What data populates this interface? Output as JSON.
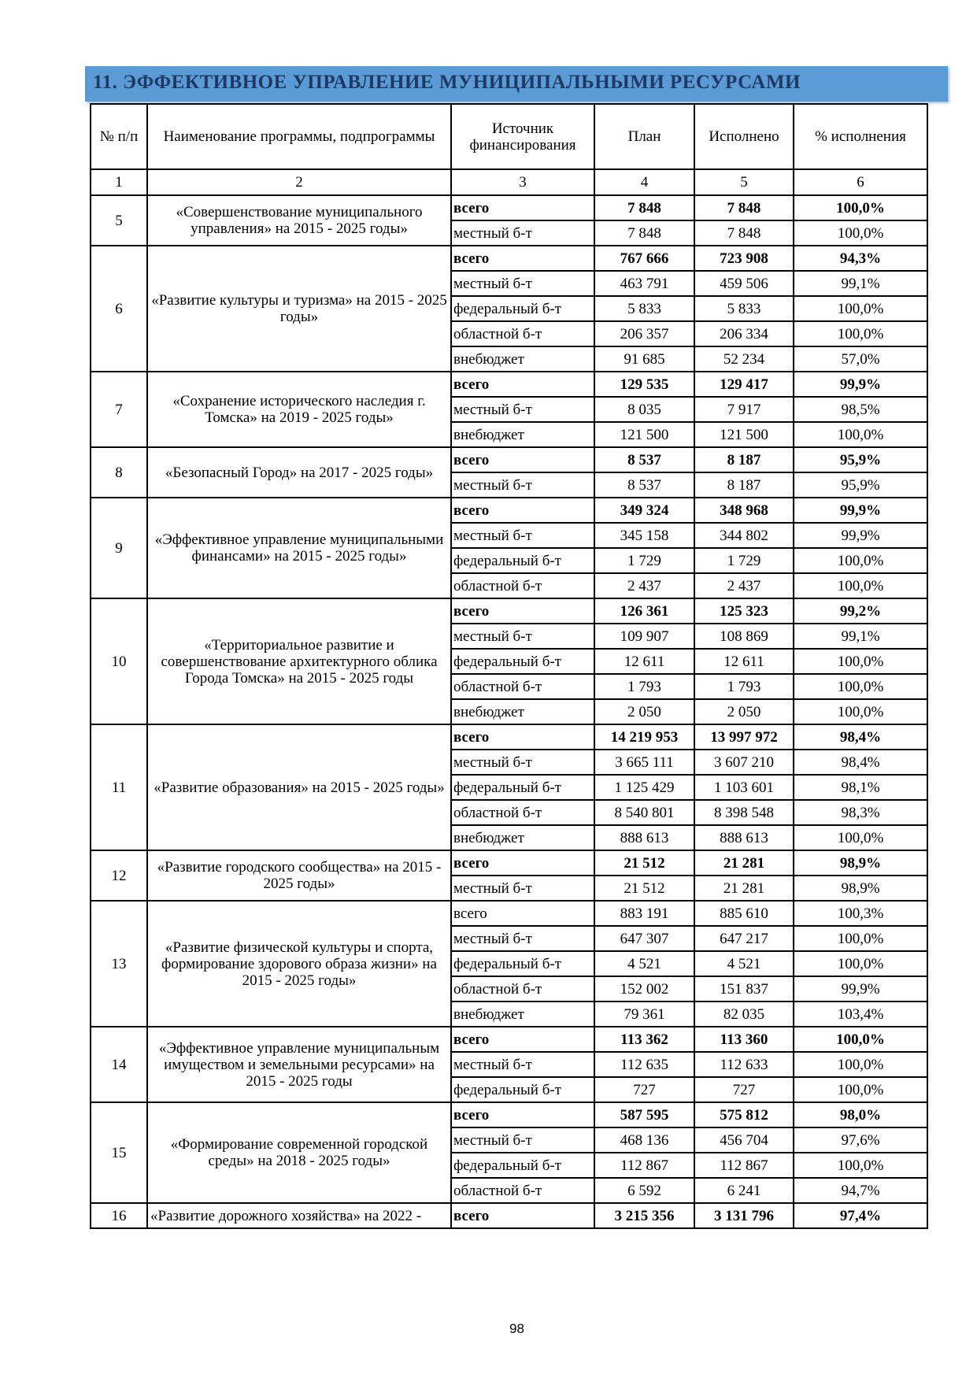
{
  "section_title": "11. ЭФФЕКТИВНОЕ УПРАВЛЕНИЕ МУНИЦИПАЛЬНЫМИ РЕСУРСАМИ",
  "columns": [
    "№ п/п",
    "Наименование программы, подпрограммы",
    "Источник финансирования",
    "План",
    "Исполнено",
    "% исполнения"
  ],
  "column_numbers": [
    "1",
    "2",
    "3",
    "4",
    "5",
    "6"
  ],
  "programs": [
    {
      "no": "5",
      "name": "«Совершенствование муниципального управления» на 2015 - 2025 годы»",
      "rows": [
        {
          "source": "всего",
          "plan": "7 848",
          "done": "7 848",
          "pct": "100,0%",
          "bold": true
        },
        {
          "source": "местный б-т",
          "plan": "7 848",
          "done": "7 848",
          "pct": "100,0%"
        }
      ]
    },
    {
      "no": "6",
      "name": "«Развитие культуры и туризма» на 2015 - 2025 годы»",
      "rows": [
        {
          "source": "всего",
          "plan": "767 666",
          "done": "723 908",
          "pct": "94,3%",
          "bold": true
        },
        {
          "source": "местный б-т",
          "plan": "463 791",
          "done": "459 506",
          "pct": "99,1%"
        },
        {
          "source": "федеральный б-т",
          "plan": "5 833",
          "done": "5 833",
          "pct": "100,0%"
        },
        {
          "source": "областной б-т",
          "plan": "206 357",
          "done": "206 334",
          "pct": "100,0%"
        },
        {
          "source": "внебюджет",
          "plan": "91 685",
          "done": "52 234",
          "pct": "57,0%"
        }
      ]
    },
    {
      "no": "7",
      "name": "«Сохранение исторического наследия г. Томска» на 2019 - 2025 годы»",
      "rows": [
        {
          "source": "всего",
          "plan": "129 535",
          "done": "129 417",
          "pct": "99,9%",
          "bold": true
        },
        {
          "source": "местный б-т",
          "plan": "8 035",
          "done": "7 917",
          "pct": "98,5%"
        },
        {
          "source": "внебюджет",
          "plan": "121 500",
          "done": "121 500",
          "pct": "100,0%"
        }
      ]
    },
    {
      "no": "8",
      "name": "«Безопасный Город» на 2017 - 2025 годы»",
      "rows": [
        {
          "source": "всего",
          "plan": "8 537",
          "done": "8 187",
          "pct": "95,9%",
          "bold": true
        },
        {
          "source": "местный б-т",
          "plan": "8 537",
          "done": "8 187",
          "pct": "95,9%"
        }
      ]
    },
    {
      "no": "9",
      "name": "«Эффективное управление муниципальными финансами» на 2015 - 2025 годы»",
      "rows": [
        {
          "source": "всего",
          "plan": "349 324",
          "done": "348 968",
          "pct": "99,9%",
          "bold": true
        },
        {
          "source": "местный б-т",
          "plan": "345 158",
          "done": "344 802",
          "pct": "99,9%"
        },
        {
          "source": "федеральный б-т",
          "plan": "1 729",
          "done": "1 729",
          "pct": "100,0%"
        },
        {
          "source": "областной б-т",
          "plan": "2 437",
          "done": "2 437",
          "pct": "100,0%"
        }
      ]
    },
    {
      "no": "10",
      "name": "«Территориальное развитие и совершенствование архитектурного облика Города Томска» на 2015 - 2025 годы",
      "rows": [
        {
          "source": "всего",
          "plan": "126 361",
          "done": "125 323",
          "pct": "99,2%",
          "bold": true
        },
        {
          "source": "местный б-т",
          "plan": "109 907",
          "done": "108 869",
          "pct": "99,1%"
        },
        {
          "source": "федеральный б-т",
          "plan": "12 611",
          "done": "12 611",
          "pct": "100,0%"
        },
        {
          "source": "областной б-т",
          "plan": "1 793",
          "done": "1 793",
          "pct": "100,0%"
        },
        {
          "source": "внебюджет",
          "plan": "2 050",
          "done": "2 050",
          "pct": "100,0%"
        }
      ]
    },
    {
      "no": "11",
      "name": "«Развитие образования» на 2015 - 2025 годы»",
      "rows": [
        {
          "source": "всего",
          "plan": "14 219 953",
          "done": "13 997 972",
          "pct": "98,4%",
          "bold": true
        },
        {
          "source": "местный б-т",
          "plan": "3 665 111",
          "done": "3 607 210",
          "pct": "98,4%"
        },
        {
          "source": "федеральный б-т",
          "plan": "1 125 429",
          "done": "1 103 601",
          "pct": "98,1%"
        },
        {
          "source": "областной б-т",
          "plan": "8 540 801",
          "done": "8 398 548",
          "pct": "98,3%"
        },
        {
          "source": "внебюджет",
          "plan": "888 613",
          "done": "888 613",
          "pct": "100,0%"
        }
      ]
    },
    {
      "no": "12",
      "name": "«Развитие городского сообщества» на 2015 - 2025 годы»",
      "rows": [
        {
          "source": "всего",
          "plan": "21 512",
          "done": "21 281",
          "pct": "98,9%",
          "bold": true
        },
        {
          "source": "местный б-т",
          "plan": "21 512",
          "done": "21 281",
          "pct": "98,9%"
        }
      ]
    },
    {
      "no": "13",
      "name": "«Развитие физической культуры и спорта, формирование здорового образа жизни» на 2015 - 2025 годы»",
      "rows": [
        {
          "source": "всего",
          "plan": "883 191",
          "done": "885 610",
          "pct": "100,3%"
        },
        {
          "source": "местный б-т",
          "plan": "647 307",
          "done": "647 217",
          "pct": "100,0%"
        },
        {
          "source": "федеральный б-т",
          "plan": "4 521",
          "done": "4 521",
          "pct": "100,0%"
        },
        {
          "source": "областной б-т",
          "plan": "152 002",
          "done": "151 837",
          "pct": "99,9%"
        },
        {
          "source": "внебюджет",
          "plan": "79 361",
          "done": "82 035",
          "pct": "103,4%"
        }
      ]
    },
    {
      "no": "14",
      "name": "«Эффективное управление муниципальным имуществом и земельными ресурсами» на 2015 - 2025 годы",
      "rows": [
        {
          "source": "всего",
          "plan": "113 362",
          "done": "113 360",
          "pct": "100,0%",
          "bold": true
        },
        {
          "source": "местный б-т",
          "plan": "112 635",
          "done": "112 633",
          "pct": "100,0%"
        },
        {
          "source": "федеральный б-т",
          "plan": "727",
          "done": "727",
          "pct": "100,0%"
        }
      ]
    },
    {
      "no": "15",
      "name": "«Формирование современной городской среды» на 2018 - 2025 годы»",
      "rows": [
        {
          "source": "всего",
          "plan": "587 595",
          "done": "575 812",
          "pct": "98,0%",
          "bold": true
        },
        {
          "source": "местный б-т",
          "plan": "468 136",
          "done": "456 704",
          "pct": "97,6%"
        },
        {
          "source": "федеральный б-т",
          "plan": "112 867",
          "done": "112 867",
          "pct": "100,0%"
        },
        {
          "source": "областной б-т",
          "plan": "6 592",
          "done": "6 241",
          "pct": "94,7%"
        }
      ]
    },
    {
      "no": "16",
      "name": "«Развитие дорожного хозяйства» на 2022 -",
      "rows": [
        {
          "source": "всего",
          "plan": "3 215 356",
          "done": "3 131 796",
          "pct": "97,4%",
          "bold": true
        }
      ]
    }
  ],
  "page_number": "98",
  "colors": {
    "banner": "#5b9bd5",
    "banner_text": "#1f3864"
  }
}
